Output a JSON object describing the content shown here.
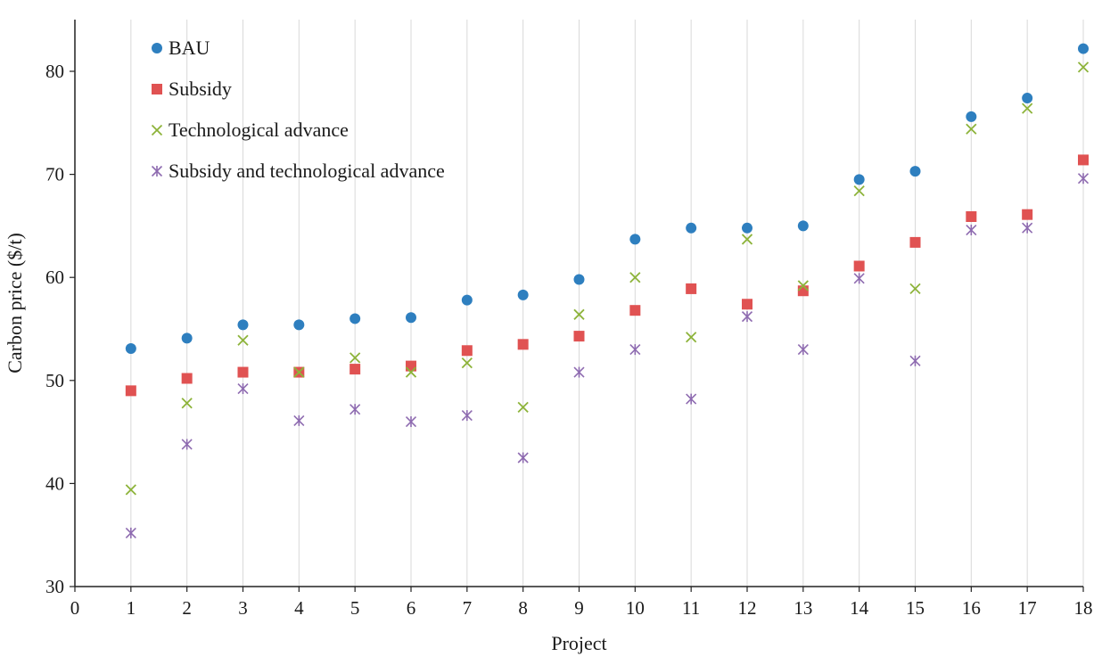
{
  "chart_data": {
    "type": "scatter",
    "title": "",
    "xlabel": "Project",
    "ylabel": "Carbon price ($/t)",
    "xlim": [
      0,
      18
    ],
    "ylim": [
      30,
      85
    ],
    "x_ticks": [
      0,
      1,
      2,
      3,
      4,
      5,
      6,
      7,
      8,
      9,
      10,
      11,
      12,
      13,
      14,
      15,
      16,
      17,
      18
    ],
    "y_ticks": [
      30,
      40,
      50,
      60,
      70,
      80
    ],
    "grid": "vertical",
    "legend_position": "top-left",
    "x": [
      1,
      2,
      3,
      4,
      5,
      6,
      7,
      8,
      9,
      10,
      11,
      12,
      13,
      14,
      15,
      16,
      17,
      18
    ],
    "series": [
      {
        "name": "BAU",
        "marker": "circle",
        "color": "#2E7FBF",
        "values": [
          53.1,
          54.1,
          55.4,
          55.4,
          56.0,
          56.1,
          57.8,
          58.3,
          59.8,
          63.7,
          64.8,
          64.8,
          65.0,
          69.5,
          70.3,
          75.6,
          77.4,
          82.2
        ]
      },
      {
        "name": "Subsidy",
        "marker": "square",
        "color": "#E05252",
        "values": [
          49.0,
          50.2,
          50.8,
          50.8,
          51.1,
          51.4,
          52.9,
          53.5,
          54.3,
          56.8,
          58.9,
          57.4,
          58.7,
          61.1,
          63.4,
          65.9,
          66.1,
          71.4
        ]
      },
      {
        "name": "Technological advance",
        "marker": "x",
        "color": "#8DB33A",
        "values": [
          39.4,
          47.8,
          53.9,
          50.8,
          52.2,
          50.8,
          51.7,
          47.4,
          56.4,
          60.0,
          54.2,
          63.7,
          59.2,
          68.4,
          58.9,
          74.4,
          76.4,
          80.4
        ]
      },
      {
        "name": "Subsidy and technological advance",
        "marker": "asterisk",
        "color": "#8E6BB0",
        "values": [
          35.2,
          43.8,
          49.2,
          46.1,
          47.2,
          46.0,
          46.6,
          42.5,
          50.8,
          53.0,
          48.2,
          56.2,
          53.0,
          59.9,
          51.9,
          64.6,
          64.8,
          69.6
        ]
      }
    ]
  }
}
